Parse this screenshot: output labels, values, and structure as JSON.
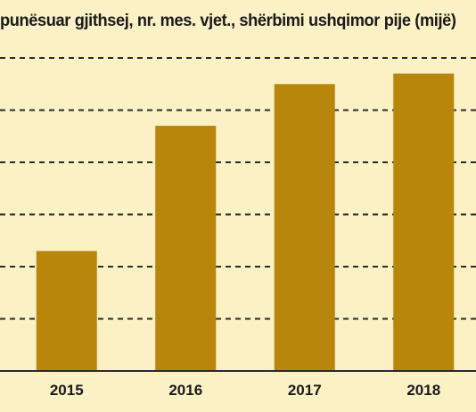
{
  "chart_data": {
    "type": "bar",
    "title": "punësuar gjithsej, nr. mes. vjet., shërbimi ushqimor pije (mijë)",
    "categories": [
      "2015",
      "2016",
      "2017",
      "2018"
    ],
    "values": [
      2.3,
      4.7,
      5.5,
      5.7
    ],
    "ylim": [
      0,
      6
    ],
    "yticks": [
      1,
      2,
      3,
      4,
      5,
      6
    ],
    "grid": true,
    "bar_color": "#b8860b",
    "background_color": "#fbf1c5",
    "xlabel": "",
    "ylabel": ""
  }
}
